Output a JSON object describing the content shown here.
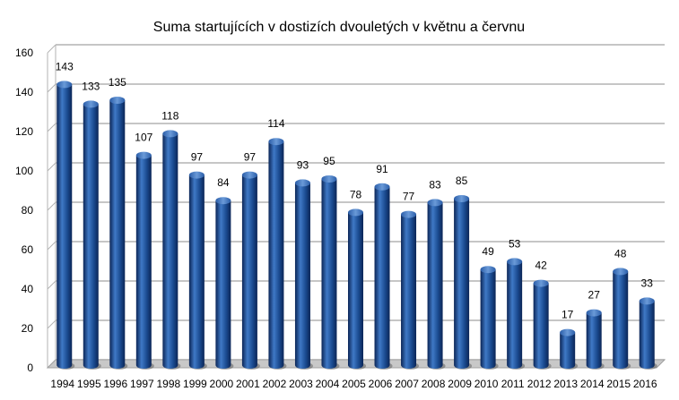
{
  "chart_data": {
    "type": "bar",
    "title": "Suma startujících v dostizích dvouletých v květnu a červnu",
    "xlabel": "",
    "ylabel": "",
    "ylim": [
      0,
      160
    ],
    "yticks": [
      0,
      20,
      40,
      60,
      80,
      100,
      120,
      140,
      160
    ],
    "grid": true,
    "legend": "none",
    "style": "3d-cylinder",
    "colors": {
      "bar": "#1a4a8f",
      "bar_highlight": "#3f79c6",
      "bar_shadow": "#0b2556",
      "grid": "#b3b3b3",
      "floor": "#c8c8c8"
    },
    "categories": [
      "1994",
      "1995",
      "1996",
      "1997",
      "1998",
      "1999",
      "2000",
      "2001",
      "2002",
      "2003",
      "2004",
      "2005",
      "2006",
      "2007",
      "2008",
      "2009",
      "2010",
      "2011",
      "2012",
      "2013",
      "2014",
      "2015",
      "2016"
    ],
    "values": [
      143,
      133,
      135,
      107,
      118,
      97,
      84,
      97,
      114,
      93,
      95,
      78,
      91,
      77,
      83,
      85,
      49,
      53,
      42,
      17,
      27,
      48,
      33
    ]
  }
}
